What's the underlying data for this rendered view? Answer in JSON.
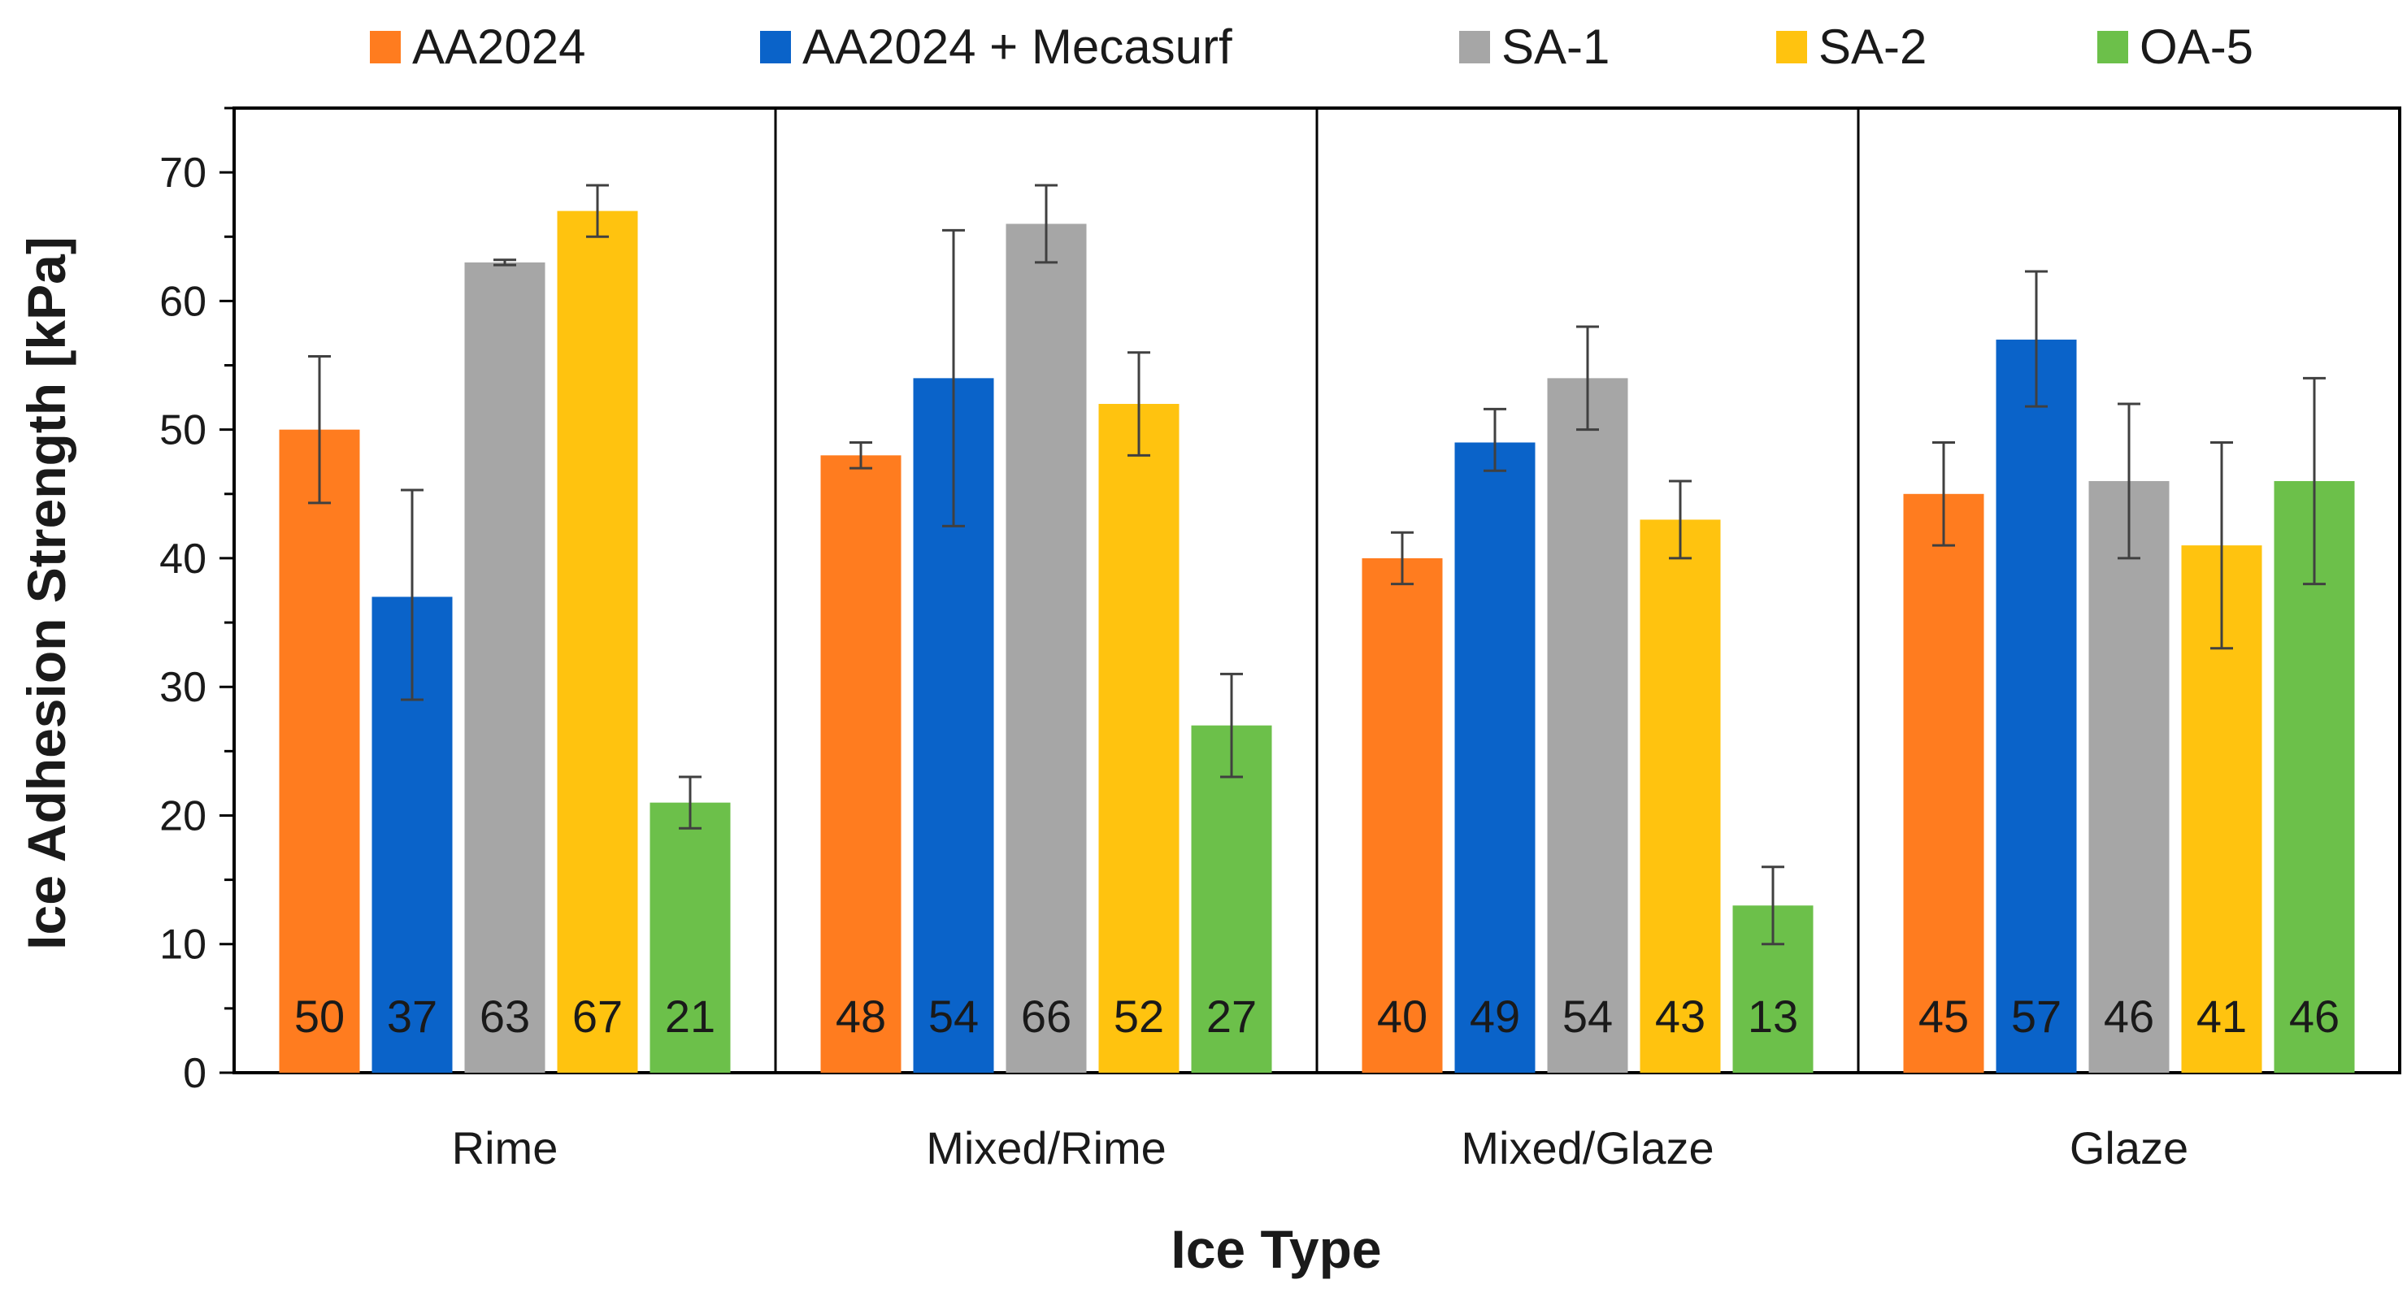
{
  "chart_data": {
    "type": "bar",
    "title": "",
    "xlabel": "Ice Type",
    "ylabel": "Ice Adhesion Strength [kPa]",
    "ylim": [
      0,
      75
    ],
    "yticks": [
      0,
      10,
      20,
      30,
      40,
      50,
      60,
      70
    ],
    "categories": [
      "Rime",
      "Mixed/Rime",
      "Mixed/Glaze",
      "Glaze"
    ],
    "legend_position": "top",
    "grid": false,
    "series": [
      {
        "name": "AA2024",
        "color": "#FF7C1F",
        "values": [
          50,
          48,
          40,
          45
        ],
        "labels": [
          "50",
          "48",
          "40",
          "45"
        ],
        "error": [
          [
            44.3,
            55.7
          ],
          [
            47,
            49
          ],
          [
            38,
            42
          ],
          [
            41,
            49
          ]
        ]
      },
      {
        "name": "AA2024 + Mecasurf",
        "color": "#0A63C9",
        "values": [
          37,
          54,
          49,
          57
        ],
        "labels": [
          "37",
          "54",
          "49",
          "57"
        ],
        "error": [
          [
            29,
            45.3
          ],
          [
            42.5,
            65.5
          ],
          [
            46.8,
            51.6
          ],
          [
            51.8,
            62.3
          ]
        ]
      },
      {
        "name": "SA-1",
        "color": "#A6A6A6",
        "values": [
          63,
          66,
          54,
          46
        ],
        "labels": [
          "63",
          "66",
          "54",
          "46"
        ],
        "error": [
          [
            62.8,
            63.2
          ],
          [
            63,
            69
          ],
          [
            50,
            58
          ],
          [
            40,
            52
          ]
        ]
      },
      {
        "name": "SA-2",
        "color": "#FFC30F",
        "values": [
          67,
          52,
          43,
          41
        ],
        "labels": [
          "67",
          "52",
          "43",
          "41"
        ],
        "error": [
          [
            65,
            69
          ],
          [
            48,
            56
          ],
          [
            40,
            46
          ],
          [
            33,
            49
          ]
        ]
      },
      {
        "name": "OA-5",
        "color": "#6CC04A",
        "values": [
          21,
          27,
          13,
          46
        ],
        "labels": [
          "21",
          "27",
          "13",
          "46"
        ],
        "error": [
          [
            19,
            23
          ],
          [
            23,
            31
          ],
          [
            10,
            16
          ],
          [
            38,
            54
          ]
        ]
      }
    ]
  }
}
